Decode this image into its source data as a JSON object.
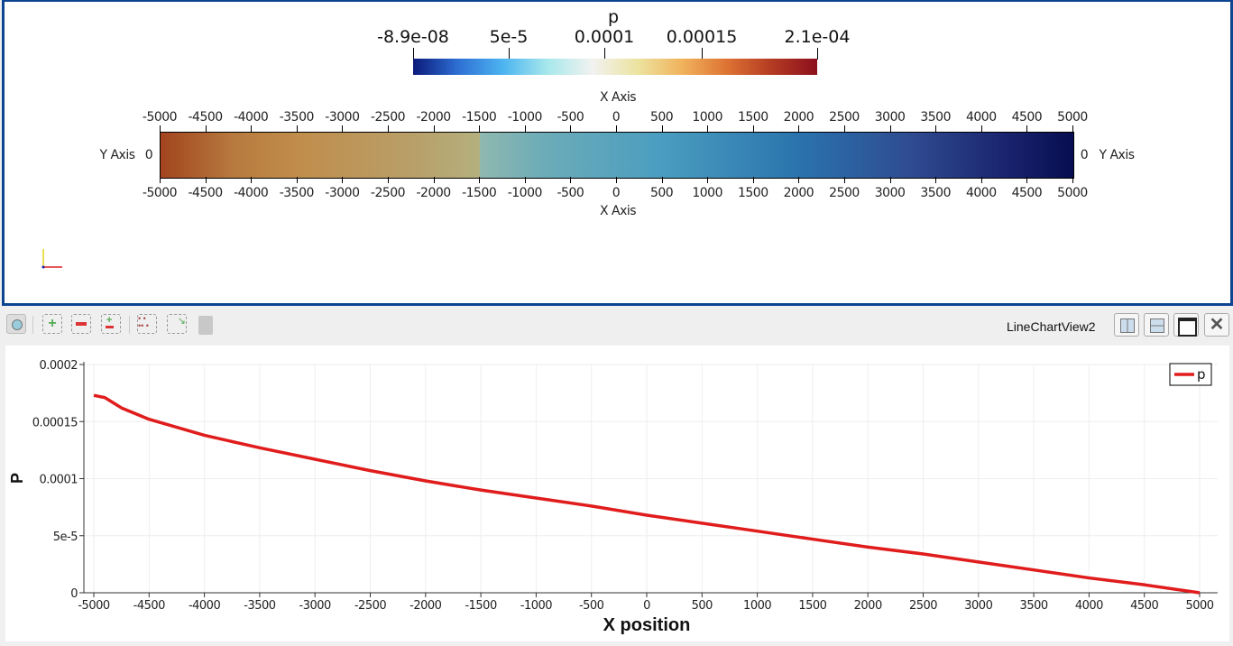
{
  "render_view": {
    "colorbar": {
      "title": "p",
      "labels": [
        "-8.9e-08",
        "5e-5",
        "0.0001",
        "0.00015",
        "2.1e-04"
      ],
      "range": [
        -8.9e-08,
        0.00021
      ],
      "colormap": [
        "#0b1a7a",
        "#2e6fd4",
        "#4cb4f0",
        "#a8e8ec",
        "#f2f2f0",
        "#ece3a0",
        "#f1b25c",
        "#dd7233",
        "#b33a22",
        "#8c0f1d"
      ]
    },
    "x_axis_title": "X Axis",
    "y_axis_title": "Y Axis",
    "x_ticks": [
      "-5000",
      "-4500",
      "-4000",
      "-3500",
      "-3000",
      "-2500",
      "-2000",
      "-1500",
      "-1000",
      "-500",
      "0",
      "500",
      "1000",
      "1500",
      "2000",
      "2500",
      "3000",
      "3500",
      "4000",
      "4500",
      "5000"
    ],
    "y_tick": "0"
  },
  "toolbar": {
    "icons": [
      "camera-icon",
      "zoom-in-icon",
      "zoom-out-icon",
      "zoom-to-box-icon",
      "select-points-icon",
      "select-box-icon",
      "trash-icon"
    ],
    "view_title": "LineChartView2",
    "view_buttons": [
      "split-horizontal-icon",
      "split-vertical-icon",
      "maximize-icon",
      "close-icon"
    ]
  },
  "chart_data": {
    "type": "line",
    "xlabel": "X position",
    "ylabel": "P",
    "xlim": [
      -5000,
      5000
    ],
    "ylim": [
      0,
      0.0002
    ],
    "xticks": [
      "-5000",
      "-4500",
      "-4000",
      "-3500",
      "-3000",
      "-2500",
      "-2000",
      "-1500",
      "-1000",
      "-500",
      "0",
      "500",
      "1000",
      "1500",
      "2000",
      "2500",
      "3000",
      "3500",
      "4000",
      "4500",
      "5000"
    ],
    "yticks": [
      "0",
      "5e-5",
      "0.0001",
      "0.00015",
      "0.0002"
    ],
    "grid": true,
    "legend": "top-right",
    "series": [
      {
        "name": "p",
        "color": "#e01c1c",
        "x": [
          -5000,
          -4900,
          -4750,
          -4500,
          -4000,
          -3500,
          -3000,
          -2500,
          -2000,
          -1500,
          -1000,
          -500,
          0,
          500,
          1000,
          1500,
          2000,
          2500,
          3000,
          3500,
          4000,
          4500,
          5000
        ],
        "y": [
          0.000173,
          0.000171,
          0.000162,
          0.000152,
          0.000138,
          0.000127,
          0.000117,
          0.000107,
          9.8e-05,
          9e-05,
          8.3e-05,
          7.6e-05,
          6.8e-05,
          6.1e-05,
          5.4e-05,
          4.7e-05,
          4e-05,
          3.4e-05,
          2.7e-05,
          2e-05,
          1.3e-05,
          7e-06,
          0
        ]
      }
    ]
  }
}
